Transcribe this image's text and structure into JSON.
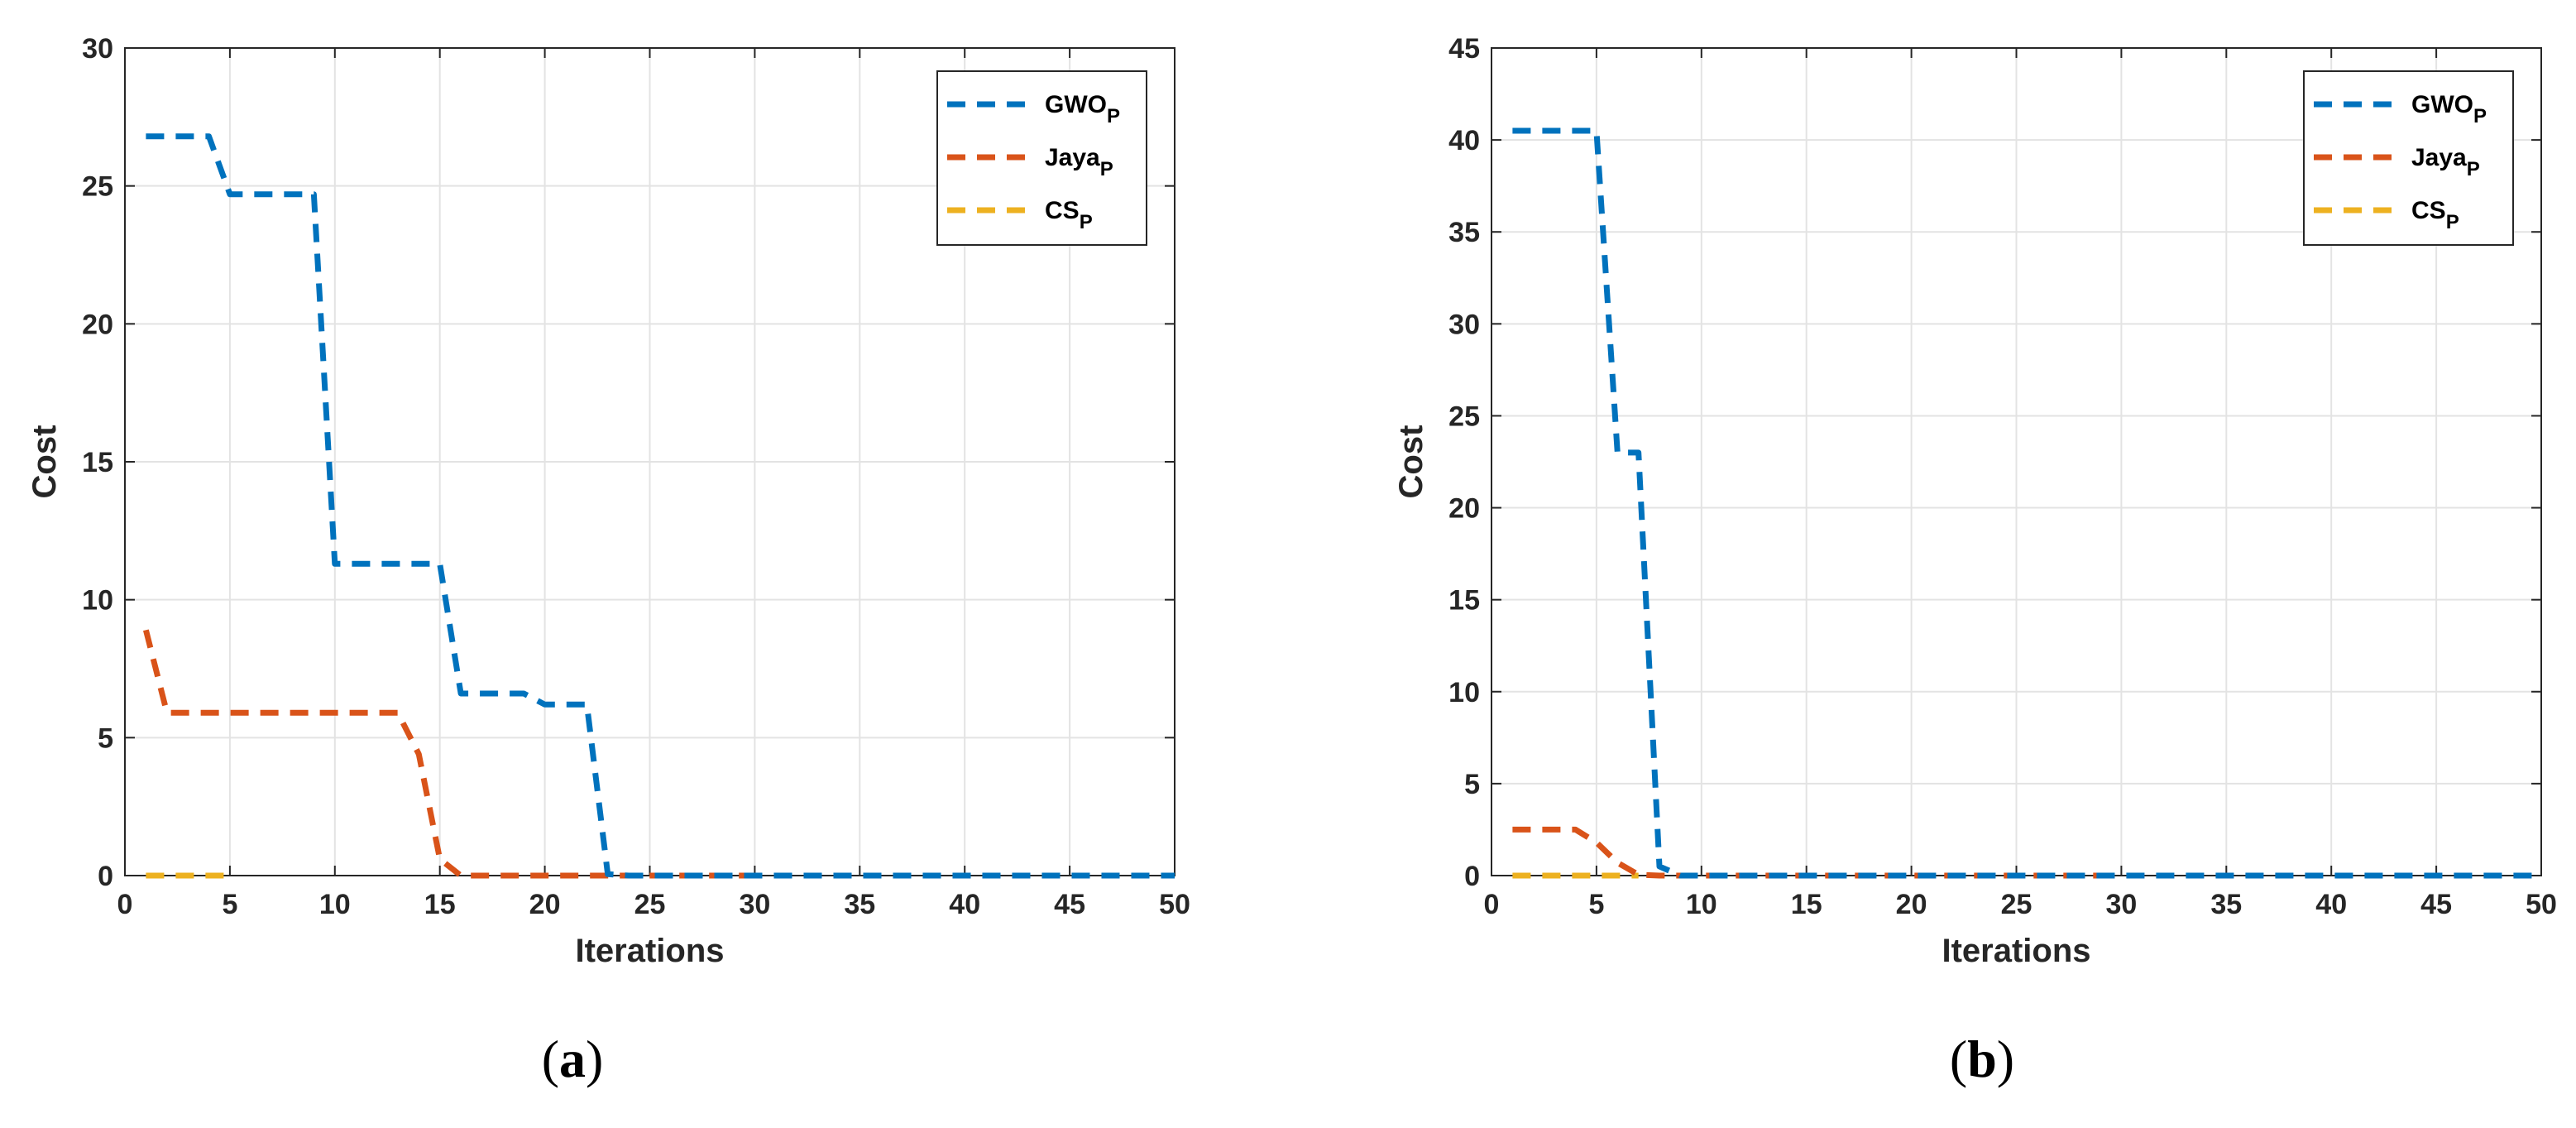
{
  "chart_data": [
    {
      "type": "line",
      "panel_label": "(a)",
      "xlabel": "Iterations",
      "ylabel": "Cost",
      "xlim": [
        0,
        50
      ],
      "ylim": [
        0,
        30
      ],
      "xticks": [
        0,
        5,
        10,
        15,
        20,
        25,
        30,
        35,
        40,
        45,
        50
      ],
      "yticks": [
        0,
        5,
        10,
        15,
        20,
        25,
        30
      ],
      "grid": true,
      "legend_position": "top-right",
      "series": [
        {
          "name": "GWO",
          "subscript": "P",
          "color": "#0072BD",
          "line_style": "dashed",
          "x": [
            1,
            2,
            3,
            4,
            5,
            6,
            7,
            8,
            9,
            10,
            11,
            12,
            13,
            14,
            15,
            16,
            17,
            18,
            19,
            20,
            21,
            22,
            23,
            24,
            25,
            26,
            27,
            28,
            29,
            30,
            31,
            32,
            33,
            34,
            35,
            36,
            37,
            38,
            39,
            40,
            41,
            42,
            43,
            44,
            45,
            46,
            47,
            48,
            49,
            50
          ],
          "y": [
            26.8,
            26.8,
            26.8,
            26.8,
            24.7,
            24.7,
            24.7,
            24.7,
            24.7,
            11.3,
            11.3,
            11.3,
            11.3,
            11.3,
            11.3,
            6.6,
            6.6,
            6.6,
            6.6,
            6.2,
            6.2,
            6.2,
            0.05,
            0,
            0,
            0,
            0,
            0,
            0,
            0,
            0,
            0,
            0,
            0,
            0,
            0,
            0,
            0,
            0,
            0,
            0,
            0,
            0,
            0,
            0,
            0,
            0,
            0,
            0,
            0
          ]
        },
        {
          "name": "Jaya",
          "subscript": "P",
          "color": "#D95319",
          "line_style": "dashed",
          "x": [
            1,
            2,
            3,
            4,
            5,
            6,
            7,
            8,
            9,
            10,
            11,
            12,
            13,
            14,
            15,
            16,
            17,
            18,
            19,
            20,
            21,
            22,
            23,
            24,
            25,
            26,
            27,
            28,
            29,
            30
          ],
          "y": [
            8.9,
            5.9,
            5.9,
            5.9,
            5.9,
            5.9,
            5.9,
            5.9,
            5.9,
            5.9,
            5.9,
            5.9,
            5.9,
            4.4,
            0.6,
            0,
            0,
            0,
            0,
            0,
            0,
            0,
            0,
            0,
            0,
            0,
            0,
            0,
            0,
            0
          ]
        },
        {
          "name": "CS",
          "subscript": "P",
          "color": "#EDB120",
          "line_style": "dashed",
          "x": [
            1,
            2,
            3,
            4,
            5
          ],
          "y": [
            0,
            0,
            0,
            0,
            0
          ]
        }
      ]
    },
    {
      "type": "line",
      "panel_label": "(b)",
      "xlabel": "Iterations",
      "ylabel": "Cost",
      "xlim": [
        0,
        50
      ],
      "ylim": [
        0,
        45
      ],
      "xticks": [
        0,
        5,
        10,
        15,
        20,
        25,
        30,
        35,
        40,
        45,
        50
      ],
      "yticks": [
        0,
        5,
        10,
        15,
        20,
        25,
        30,
        35,
        40,
        45
      ],
      "grid": true,
      "legend_position": "top-right",
      "series": [
        {
          "name": "GWO",
          "subscript": "P",
          "color": "#0072BD",
          "line_style": "dashed",
          "x": [
            1,
            2,
            3,
            4,
            5,
            6,
            7,
            8,
            9,
            10,
            11,
            12,
            13,
            14,
            15,
            16,
            17,
            18,
            19,
            20,
            21,
            22,
            23,
            24,
            25,
            26,
            27,
            28,
            29,
            30,
            31,
            32,
            33,
            34,
            35,
            36,
            37,
            38,
            39,
            40,
            41,
            42,
            43,
            44,
            45,
            46,
            47,
            48,
            49,
            50
          ],
          "y": [
            40.5,
            40.5,
            40.5,
            40.5,
            40.5,
            23.0,
            23.0,
            0.5,
            0,
            0,
            0,
            0,
            0,
            0,
            0,
            0,
            0,
            0,
            0,
            0,
            0,
            0,
            0,
            0,
            0,
            0,
            0,
            0,
            0,
            0,
            0,
            0,
            0,
            0,
            0,
            0,
            0,
            0,
            0,
            0,
            0,
            0,
            0,
            0,
            0,
            0,
            0,
            0,
            0,
            0
          ]
        },
        {
          "name": "Jaya",
          "subscript": "P",
          "color": "#D95319",
          "line_style": "dashed",
          "x": [
            1,
            2,
            3,
            4,
            5,
            6,
            7,
            8,
            9,
            10,
            11,
            12,
            13,
            14,
            15,
            16,
            17,
            18,
            19,
            20,
            21,
            22,
            23,
            24,
            25,
            26,
            27,
            28,
            29,
            30
          ],
          "y": [
            2.5,
            2.5,
            2.5,
            2.5,
            1.8,
            0.7,
            0.05,
            0,
            0,
            0,
            0,
            0,
            0,
            0,
            0,
            0,
            0,
            0,
            0,
            0,
            0,
            0,
            0,
            0,
            0,
            0,
            0,
            0,
            0,
            0
          ]
        },
        {
          "name": "CS",
          "subscript": "P",
          "color": "#EDB120",
          "line_style": "dashed",
          "x": [
            1,
            2,
            3,
            4,
            5,
            6,
            7
          ],
          "y": [
            0,
            0,
            0,
            0,
            0,
            0,
            0
          ]
        }
      ]
    }
  ]
}
